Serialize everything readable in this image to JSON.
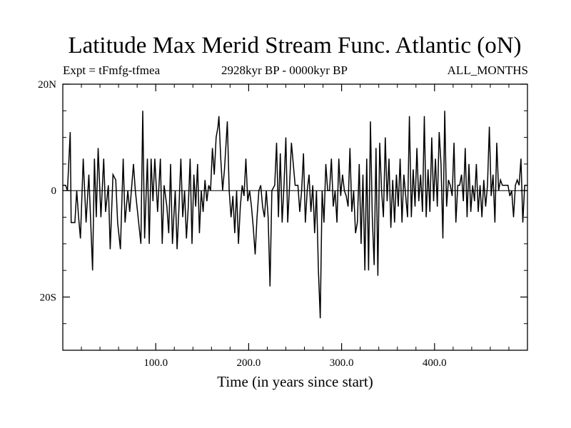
{
  "chart_data": {
    "type": "line",
    "title": "Latitude Max Merid Stream Func. Atlantic (oN)",
    "subtitle_left": "Expt = tFmfg-tfmea",
    "subtitle_center": "2928kyr BP - 0000kyr BP",
    "subtitle_right": "ALL_MONTHS",
    "xlabel": "Time (in years since start)",
    "ylabel": "",
    "xlim": [
      0,
      500
    ],
    "ylim": [
      -30,
      20
    ],
    "x_ticks": [
      100,
      200,
      300,
      400
    ],
    "x_tick_labels": [
      "100.0",
      "200.0",
      "300.0",
      "400.0"
    ],
    "y_ticks": [
      20,
      0,
      -20
    ],
    "y_tick_labels": [
      "20N",
      "0",
      "20S"
    ],
    "y_minor_ticks": [
      15,
      10,
      5,
      -5,
      -10,
      -15,
      -25
    ],
    "grid": false,
    "series": [
      {
        "values": [
          [
            0,
            1
          ],
          [
            3,
            1
          ],
          [
            5,
            0
          ],
          [
            8,
            11
          ],
          [
            9,
            -6
          ],
          [
            13,
            -6
          ],
          [
            15,
            0
          ],
          [
            17,
            -5
          ],
          [
            19,
            -9
          ],
          [
            22,
            6
          ],
          [
            25,
            -6
          ],
          [
            28,
            3
          ],
          [
            30,
            -6
          ],
          [
            32,
            -15
          ],
          [
            34,
            6
          ],
          [
            36,
            -5
          ],
          [
            38,
            8
          ],
          [
            41,
            -5
          ],
          [
            44,
            6
          ],
          [
            46,
            -4
          ],
          [
            49,
            1
          ],
          [
            51,
            -11
          ],
          [
            54,
            3
          ],
          [
            57,
            2
          ],
          [
            59,
            -6
          ],
          [
            62,
            -11
          ],
          [
            65,
            6
          ],
          [
            67,
            -6
          ],
          [
            70,
            0
          ],
          [
            72,
            -4
          ],
          [
            76,
            5
          ],
          [
            78,
            0
          ],
          [
            81,
            -5
          ],
          [
            84,
            -10
          ],
          [
            86,
            15
          ],
          [
            88,
            -9
          ],
          [
            91,
            6
          ],
          [
            93,
            -10
          ],
          [
            95,
            6
          ],
          [
            97,
            -2
          ],
          [
            99,
            6
          ],
          [
            102,
            -4
          ],
          [
            105,
            6
          ],
          [
            107,
            -10
          ],
          [
            109,
            1
          ],
          [
            112,
            -3
          ],
          [
            114,
            -8
          ],
          [
            116,
            5
          ],
          [
            118,
            -10
          ],
          [
            121,
            0
          ],
          [
            123,
            -11
          ],
          [
            125,
            -3
          ],
          [
            127,
            6
          ],
          [
            129,
            -5
          ],
          [
            131,
            0
          ],
          [
            133,
            -9
          ],
          [
            135,
            -3
          ],
          [
            137,
            6
          ],
          [
            139,
            -10
          ],
          [
            141,
            3
          ],
          [
            143,
            -3
          ],
          [
            145,
            5
          ],
          [
            147,
            -8
          ],
          [
            149,
            0
          ],
          [
            151,
            -4
          ],
          [
            153,
            2
          ],
          [
            155,
            -2
          ],
          [
            157,
            1
          ],
          [
            159,
            0
          ],
          [
            161,
            8
          ],
          [
            163,
            3
          ],
          [
            165,
            10
          ],
          [
            167,
            12
          ],
          [
            168,
            14
          ],
          [
            170,
            6
          ],
          [
            172,
            0
          ],
          [
            174,
            4
          ],
          [
            176,
            10
          ],
          [
            177,
            13
          ],
          [
            179,
            0
          ],
          [
            181,
            -5
          ],
          [
            183,
            -1
          ],
          [
            185,
            -8
          ],
          [
            187,
            0
          ],
          [
            189,
            -10
          ],
          [
            191,
            -3
          ],
          [
            193,
            1
          ],
          [
            195,
            -1
          ],
          [
            197,
            6
          ],
          [
            199,
            -2
          ],
          [
            201,
            0
          ],
          [
            203,
            -3
          ],
          [
            205,
            -7
          ],
          [
            207,
            -12
          ],
          [
            209,
            -5
          ],
          [
            211,
            0
          ],
          [
            213,
            1
          ],
          [
            215,
            -3
          ],
          [
            217,
            -5
          ],
          [
            219,
            0
          ],
          [
            221,
            -5
          ],
          [
            223,
            -18
          ],
          [
            225,
            0
          ],
          [
            228,
            1
          ],
          [
            230,
            9
          ],
          [
            232,
            -5
          ],
          [
            234,
            7
          ],
          [
            236,
            -6
          ],
          [
            238,
            1
          ],
          [
            240,
            10
          ],
          [
            242,
            -6
          ],
          [
            244,
            1
          ],
          [
            246,
            9
          ],
          [
            248,
            5
          ],
          [
            250,
            1
          ],
          [
            253,
            1
          ],
          [
            255,
            -4
          ],
          [
            257,
            0
          ],
          [
            259,
            7
          ],
          [
            261,
            -6
          ],
          [
            263,
            0
          ],
          [
            265,
            3
          ],
          [
            267,
            -4
          ],
          [
            269,
            1
          ],
          [
            271,
            -8
          ],
          [
            273,
            0
          ],
          [
            275,
            -15
          ],
          [
            277,
            -24
          ],
          [
            279,
            0
          ],
          [
            281,
            -6
          ],
          [
            283,
            5
          ],
          [
            285,
            0
          ],
          [
            287,
            0
          ],
          [
            289,
            6
          ],
          [
            291,
            -3
          ],
          [
            293,
            0
          ],
          [
            295,
            -6
          ],
          [
            297,
            6
          ],
          [
            299,
            -1
          ],
          [
            301,
            3
          ],
          [
            303,
            0
          ],
          [
            305,
            -1
          ],
          [
            307,
            -3
          ],
          [
            309,
            8
          ],
          [
            311,
            -4
          ],
          [
            313,
            0
          ],
          [
            315,
            -8
          ],
          [
            317,
            -6
          ],
          [
            319,
            5
          ],
          [
            321,
            -10
          ],
          [
            323,
            3
          ],
          [
            325,
            -15
          ],
          [
            327,
            6
          ],
          [
            329,
            -15
          ],
          [
            331,
            13
          ],
          [
            333,
            -5
          ],
          [
            335,
            -14
          ],
          [
            337,
            8
          ],
          [
            339,
            -16
          ],
          [
            341,
            9
          ],
          [
            343,
            0
          ],
          [
            345,
            -5
          ],
          [
            347,
            10
          ],
          [
            349,
            -2
          ],
          [
            351,
            6
          ],
          [
            353,
            -7
          ],
          [
            355,
            2
          ],
          [
            357,
            -6
          ],
          [
            359,
            3
          ],
          [
            361,
            -3
          ],
          [
            363,
            6
          ],
          [
            365,
            -6
          ],
          [
            367,
            3
          ],
          [
            369,
            -1
          ],
          [
            371,
            -5
          ],
          [
            373,
            14
          ],
          [
            375,
            -5
          ],
          [
            377,
            4
          ],
          [
            379,
            -3
          ],
          [
            381,
            8
          ],
          [
            383,
            -2
          ],
          [
            385,
            3
          ],
          [
            387,
            -4
          ],
          [
            389,
            14
          ],
          [
            391,
            -5
          ],
          [
            393,
            4
          ],
          [
            395,
            -4
          ],
          [
            397,
            10
          ],
          [
            399,
            -2
          ],
          [
            401,
            6
          ],
          [
            403,
            -3
          ],
          [
            405,
            11
          ],
          [
            407,
            5
          ],
          [
            409,
            -9
          ],
          [
            411,
            15
          ],
          [
            413,
            -3
          ],
          [
            415,
            2
          ],
          [
            417,
            1
          ],
          [
            419,
            -1
          ],
          [
            421,
            9
          ],
          [
            423,
            -6
          ],
          [
            425,
            1
          ],
          [
            427,
            1
          ],
          [
            429,
            3
          ],
          [
            431,
            -2
          ],
          [
            433,
            8
          ],
          [
            435,
            -5
          ],
          [
            437,
            5
          ],
          [
            439,
            -4
          ],
          [
            441,
            1
          ],
          [
            443,
            -2
          ],
          [
            445,
            5
          ],
          [
            447,
            -4
          ],
          [
            449,
            1
          ],
          [
            451,
            -5
          ],
          [
            453,
            2
          ],
          [
            455,
            -3
          ],
          [
            457,
            1
          ],
          [
            459,
            12
          ],
          [
            461,
            -1
          ],
          [
            463,
            3
          ],
          [
            465,
            -6
          ],
          [
            467,
            9
          ],
          [
            469,
            0
          ],
          [
            471,
            2
          ],
          [
            473,
            1
          ],
          [
            475,
            1
          ],
          [
            477,
            1
          ],
          [
            479,
            1
          ],
          [
            481,
            -1
          ],
          [
            483,
            0
          ],
          [
            485,
            -5
          ],
          [
            487,
            1
          ],
          [
            489,
            2
          ],
          [
            491,
            1
          ],
          [
            493,
            6
          ],
          [
            495,
            -6
          ],
          [
            497,
            1
          ],
          [
            500,
            1
          ]
        ]
      }
    ]
  }
}
